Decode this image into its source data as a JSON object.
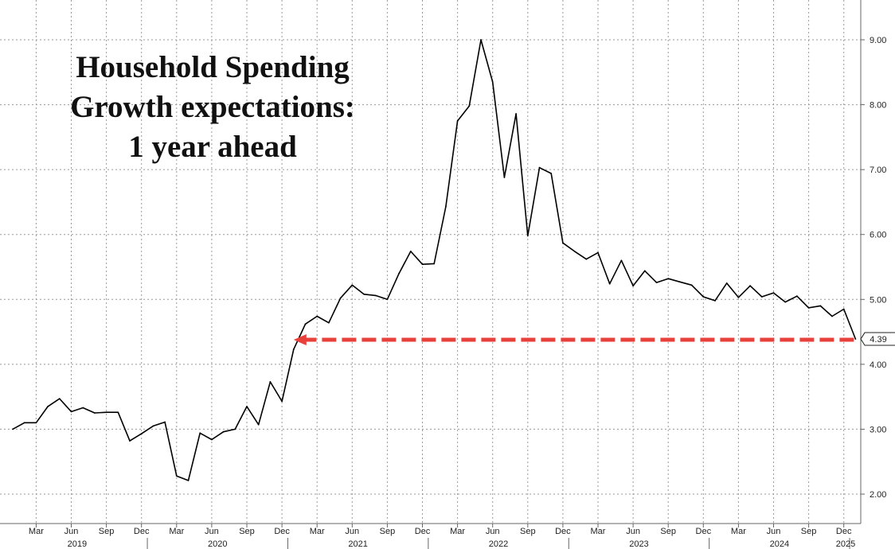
{
  "chart_data": {
    "type": "line",
    "title_lines": [
      "Household Spending",
      "Growth expectations:",
      "1 year ahead"
    ],
    "ylim": [
      1.6,
      9.6
    ],
    "y_ticks": [
      "2.00",
      "3.00",
      "4.00",
      "5.00",
      "6.00",
      "7.00",
      "8.00",
      "9.00"
    ],
    "grid": true,
    "y_axis_position": "right",
    "x_tick_labels": [
      "Mar",
      "Jun",
      "Sep",
      "Dec",
      "Mar",
      "Jun",
      "Sep",
      "Dec",
      "Mar",
      "Jun",
      "Sep",
      "Dec",
      "Mar",
      "Jun",
      "Sep",
      "Dec",
      "Mar",
      "Jun",
      "Sep",
      "Dec",
      "Mar",
      "Jun",
      "Sep",
      "Dec"
    ],
    "year_labels": [
      "2019",
      "2020",
      "2021",
      "2022",
      "2023",
      "2024",
      "2025"
    ],
    "series": [
      {
        "color": "#000000",
        "x": [
          "2019-01",
          "2019-02",
          "2019-03",
          "2019-04",
          "2019-05",
          "2019-06",
          "2019-07",
          "2019-08",
          "2019-09",
          "2019-10",
          "2019-11",
          "2019-12",
          "2020-01",
          "2020-02",
          "2020-03",
          "2020-04",
          "2020-05",
          "2020-06",
          "2020-07",
          "2020-08",
          "2020-09",
          "2020-10",
          "2020-11",
          "2020-12",
          "2021-01",
          "2021-02",
          "2021-03",
          "2021-04",
          "2021-05",
          "2021-06",
          "2021-07",
          "2021-08",
          "2021-09",
          "2021-10",
          "2021-11",
          "2021-12",
          "2022-01",
          "2022-02",
          "2022-03",
          "2022-04",
          "2022-05",
          "2022-06",
          "2022-07",
          "2022-08",
          "2022-09",
          "2022-10",
          "2022-11",
          "2022-12",
          "2023-01",
          "2023-02",
          "2023-03",
          "2023-04",
          "2023-05",
          "2023-06",
          "2023-07",
          "2023-08",
          "2023-09",
          "2023-10",
          "2023-11",
          "2023-12",
          "2024-01",
          "2024-02",
          "2024-03",
          "2024-04",
          "2024-05",
          "2024-06",
          "2024-07",
          "2024-08",
          "2024-09",
          "2024-10",
          "2024-11",
          "2024-12",
          "2025-01"
        ],
        "values": [
          3.0,
          3.1,
          3.1,
          3.35,
          3.47,
          3.27,
          3.33,
          3.25,
          3.26,
          3.26,
          2.82,
          2.93,
          3.05,
          3.11,
          2.28,
          2.21,
          2.94,
          2.84,
          2.96,
          3.0,
          3.35,
          3.07,
          3.73,
          3.43,
          4.23,
          4.62,
          4.74,
          4.64,
          5.02,
          5.22,
          5.08,
          5.06,
          5.0,
          5.4,
          5.74,
          5.54,
          5.55,
          6.43,
          7.75,
          7.98,
          9.0,
          8.35,
          6.88,
          7.86,
          5.98,
          7.03,
          6.94,
          5.87,
          5.74,
          5.62,
          5.72,
          5.24,
          5.6,
          5.21,
          5.44,
          5.26,
          5.32,
          5.27,
          5.22,
          5.04,
          4.98,
          5.25,
          5.03,
          5.21,
          5.04,
          5.1,
          4.96,
          5.05,
          4.87,
          4.9,
          4.74,
          4.85,
          4.39
        ]
      }
    ],
    "last_value_label": "4.39",
    "annotation": {
      "type": "dashed-arrow",
      "color": "#e8413c",
      "y": 4.39,
      "x_from": "2025-01",
      "x_to": "2021-01"
    }
  }
}
